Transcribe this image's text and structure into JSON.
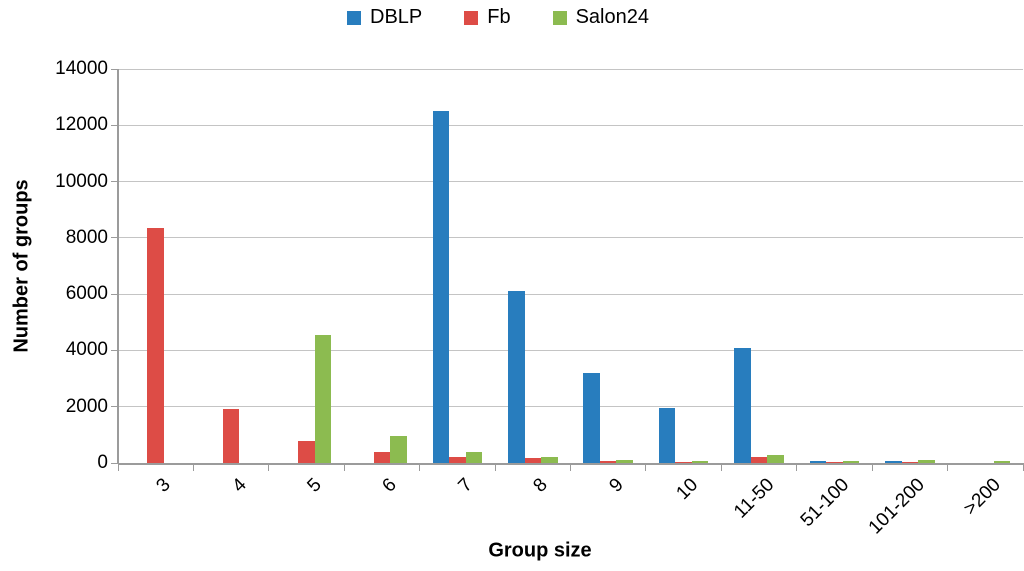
{
  "chart_data": {
    "type": "bar",
    "title": "",
    "xlabel": "Group size",
    "ylabel": "Number of groups",
    "categories": [
      "3",
      "4",
      "5",
      "6",
      "7",
      "8",
      "9",
      "10",
      "11-50",
      "51-100",
      "101-200",
      ">200"
    ],
    "series": [
      {
        "name": "DBLP",
        "color": "#287DBE",
        "values": [
          0,
          0,
          0,
          0,
          12500,
          6100,
          3200,
          1950,
          4100,
          60,
          60,
          0
        ]
      },
      {
        "name": "Fb",
        "color": "#DD4C46",
        "values": [
          8350,
          1925,
          775,
          375,
          225,
          175,
          60,
          40,
          225,
          50,
          50,
          0
        ]
      },
      {
        "name": "Salon24",
        "color": "#8CBB50",
        "values": [
          0,
          0,
          4550,
          975,
          375,
          210,
          110,
          70,
          300,
          60,
          100,
          80
        ]
      }
    ],
    "ylim": [
      0,
      14000
    ],
    "ytick_step": 2000,
    "yticks": [
      0,
      2000,
      4000,
      6000,
      8000,
      10000,
      12000,
      14000
    ],
    "grid": true,
    "legend_position": "top-center"
  }
}
